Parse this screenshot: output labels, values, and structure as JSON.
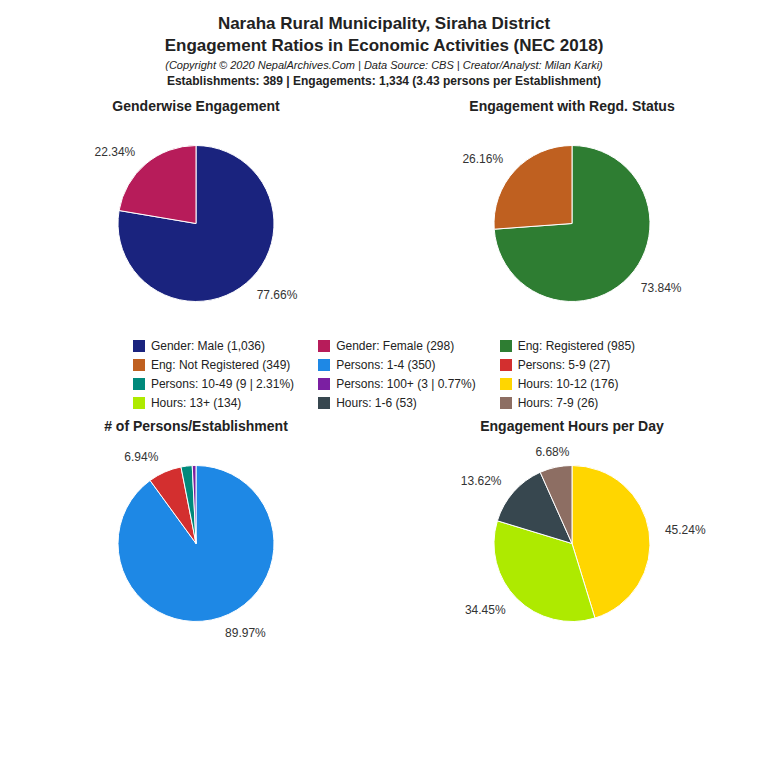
{
  "title": "Naraha Rural Municipality, Siraha District",
  "subtitle": "Engagement Ratios in Economic Activities (NEC 2018)",
  "annotations": [
    "(Copyright © 2020 NepalArchives.Com | Data Source: CBS | Creator/Analyst: Milan Karki)",
    "Establishments: 389 | Engagements: 1,334 (3.43 persons per Establishment)"
  ],
  "chart_data": [
    {
      "type": "pie",
      "title": "Genderwise Engagement",
      "categories": [
        "Gender: Male (1,036)",
        "Gender: Female (298)"
      ],
      "values": [
        77.66,
        22.34
      ],
      "value_labels": [
        "77.66%",
        "22.34%"
      ],
      "colors": [
        "#1a237e",
        "#b71c5a"
      ],
      "data_labels": true
    },
    {
      "type": "pie",
      "title": "Engagement with Regd. Status",
      "categories": [
        "Eng: Registered (985)",
        "Eng: Not Registered (349)"
      ],
      "values": [
        73.84,
        26.16
      ],
      "value_labels": [
        "73.84%",
        "26.16%"
      ],
      "colors": [
        "#2e7d32",
        "#bf6020"
      ],
      "data_labels": true
    },
    {
      "type": "pie",
      "title": "# of Persons/Establishment",
      "categories": [
        "Persons: 1-4 (350)",
        "Persons: 5-9 (27)",
        "Persons: 10-49 (9 | 2.31%)",
        "Persons: 100+ (3 | 0.77%)"
      ],
      "values": [
        89.97,
        6.94,
        2.31,
        0.77
      ],
      "value_labels": [
        "89.97%",
        "6.94%",
        null,
        null
      ],
      "colors": [
        "#1e88e5",
        "#d32f2f",
        "#00897b",
        "#7b1fa2"
      ],
      "data_labels": true
    },
    {
      "type": "pie",
      "title": "Engagement Hours per Day",
      "categories": [
        "Hours: 10-12 (176)",
        "Hours: 13+ (134)",
        "Hours: 1-6 (53)",
        "Hours: 7-9 (26)"
      ],
      "values": [
        45.24,
        34.45,
        13.62,
        6.68
      ],
      "value_labels": [
        "45.24%",
        "34.45%",
        "13.62%",
        "6.68%"
      ],
      "colors": [
        "#ffd600",
        "#aeea00",
        "#37474f",
        "#8d6e63"
      ],
      "data_labels": true
    }
  ]
}
